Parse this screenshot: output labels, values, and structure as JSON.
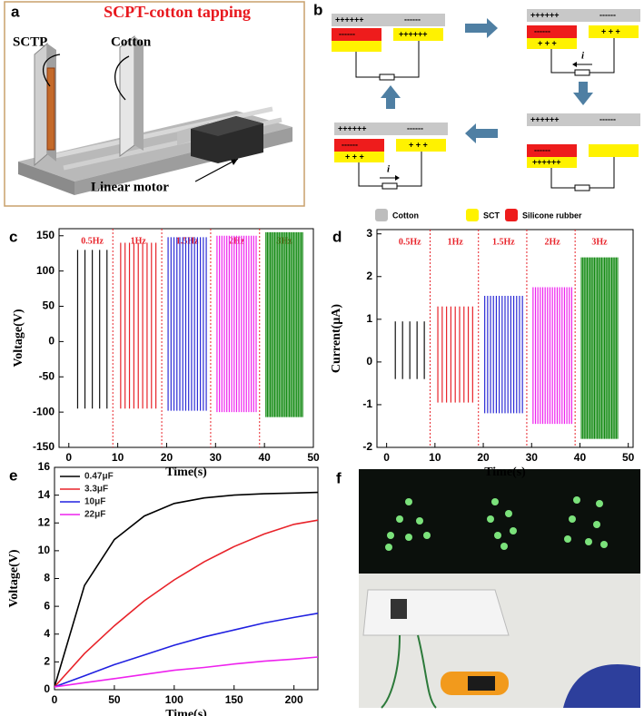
{
  "panels": {
    "a": {
      "label": "a",
      "title": "SCPT-cotton tapping",
      "sctp": "SCTP",
      "cotton": "Cotton",
      "motor": "Linear motor"
    },
    "b": {
      "label": "b",
      "states": [
        [
          "++++++",
          "------",
          "------",
          "++++++"
        ],
        [
          "++++++",
          "------",
          "------",
          "+ + +",
          "+ + +",
          "i"
        ],
        [
          "++++++",
          "------",
          "------",
          "++++++"
        ],
        [
          "++++++",
          "------",
          "------",
          "+ + +",
          "+ + +",
          "i"
        ]
      ],
      "legend": [
        "Cotton",
        "SCT",
        "Silicone rubber"
      ]
    },
    "f": {
      "label": "f"
    }
  },
  "chart_data": [
    {
      "type": "pulse",
      "panel_label": "c",
      "xlabel": "Time(s)",
      "ylabel": "Voltage(V)",
      "xlim": [
        -2,
        50
      ],
      "ylim": [
        -150,
        160
      ],
      "xticks": [
        0,
        10,
        20,
        30,
        40,
        50
      ],
      "yticks": [
        -150,
        -100,
        -50,
        0,
        50,
        100,
        150
      ],
      "dividers": [
        9,
        19,
        29,
        39
      ],
      "series": [
        {
          "name": "0.5Hz",
          "color": "#111111",
          "max": 130,
          "min": -95,
          "peaks": [
            1.8,
            3.3,
            4.8,
            6.3,
            7.8
          ]
        },
        {
          "name": "1Hz",
          "color": "#e8232a",
          "max": 140,
          "min": -95,
          "peaks": [
            10.6,
            11.5,
            12.4,
            13.3,
            14.2,
            15.1,
            16.0,
            16.9,
            17.8
          ]
        },
        {
          "name": "1.5Hz",
          "color": "#2b2bd6",
          "max": 148,
          "min": -98,
          "peaks": [
            20.3,
            20.9,
            21.5,
            22.1,
            22.7,
            23.3,
            23.9,
            24.5,
            25.1,
            25.7,
            26.3,
            26.9,
            27.5,
            28.1
          ]
        },
        {
          "name": "2Hz",
          "color": "#ee22ee",
          "max": 150,
          "min": -100,
          "peaks": [
            30.3,
            30.8,
            31.3,
            31.8,
            32.3,
            32.8,
            33.3,
            33.8,
            34.3,
            34.8,
            35.3,
            35.8,
            36.3,
            36.8,
            37.3,
            37.8,
            38.3
          ]
        },
        {
          "name": "3Hz",
          "color": "#128a12",
          "max": 155,
          "min": -107,
          "peaks": [
            40.3,
            40.6,
            40.9,
            41.2,
            41.5,
            41.8,
            42.1,
            42.4,
            42.7,
            43,
            43.3,
            43.6,
            43.9,
            44.2,
            44.5,
            44.8,
            45.1,
            45.4,
            45.7,
            46,
            46.3,
            46.6,
            46.9,
            47.2,
            47.5,
            47.8
          ]
        }
      ]
    },
    {
      "type": "pulse",
      "panel_label": "d",
      "xlabel": "Time(s)",
      "ylabel": "Current(μA)",
      "xlim": [
        -2,
        51
      ],
      "ylim": [
        -2,
        3.1
      ],
      "xticks": [
        0,
        10,
        20,
        30,
        40,
        50
      ],
      "yticks": [
        -2,
        -1,
        0,
        1,
        2,
        3
      ],
      "dividers": [
        9,
        19,
        29,
        39
      ],
      "series": [
        {
          "name": "0.5Hz",
          "color": "#111111",
          "max": 0.95,
          "min": -0.4,
          "peaks": [
            1.8,
            3.3,
            4.8,
            6.3,
            7.8
          ]
        },
        {
          "name": "1Hz",
          "color": "#e8232a",
          "max": 1.3,
          "min": -0.95,
          "peaks": [
            10.6,
            11.5,
            12.4,
            13.3,
            14.2,
            15.1,
            16.0,
            16.9,
            17.8
          ]
        },
        {
          "name": "1.5Hz",
          "color": "#2b2bd6",
          "max": 1.55,
          "min": -1.2,
          "peaks": [
            20.3,
            20.9,
            21.5,
            22.1,
            22.7,
            23.3,
            23.9,
            24.5,
            25.1,
            25.7,
            26.3,
            26.9,
            27.5,
            28.1
          ]
        },
        {
          "name": "2Hz",
          "color": "#ee22ee",
          "max": 1.75,
          "min": -1.45,
          "peaks": [
            30.3,
            30.8,
            31.3,
            31.8,
            32.3,
            32.8,
            33.3,
            33.8,
            34.3,
            34.8,
            35.3,
            35.8,
            36.3,
            36.8,
            37.3,
            37.8,
            38.3
          ]
        },
        {
          "name": "3Hz",
          "color": "#128a12",
          "max": 2.45,
          "min": -1.8,
          "peaks": [
            40.3,
            40.6,
            40.9,
            41.2,
            41.5,
            41.8,
            42.1,
            42.4,
            42.7,
            43,
            43.3,
            43.6,
            43.9,
            44.2,
            44.5,
            44.8,
            45.1,
            45.4,
            45.7,
            46,
            46.3,
            46.6,
            46.9,
            47.2,
            47.5,
            47.8
          ]
        }
      ]
    },
    {
      "type": "line",
      "panel_label": "e",
      "xlabel": "Time(s)",
      "ylabel": "Voltage(V)",
      "xlim": [
        0,
        220
      ],
      "ylim": [
        0,
        16
      ],
      "xticks": [
        0,
        50,
        100,
        150,
        200
      ],
      "yticks": [
        0,
        2,
        4,
        6,
        8,
        10,
        12,
        14,
        16
      ],
      "legend": "upper left",
      "x": [
        0,
        25,
        50,
        75,
        100,
        125,
        150,
        175,
        200,
        220
      ],
      "series": [
        {
          "name": "0.47μF",
          "color": "#000000",
          "values": [
            0.2,
            7.5,
            10.8,
            12.5,
            13.4,
            13.8,
            14.0,
            14.1,
            14.15,
            14.2
          ]
        },
        {
          "name": "3.3μF",
          "color": "#e8232a",
          "values": [
            0.2,
            2.6,
            4.6,
            6.4,
            7.9,
            9.2,
            10.3,
            11.2,
            11.9,
            12.2
          ]
        },
        {
          "name": "10μF",
          "color": "#2020e0",
          "values": [
            0.2,
            1.0,
            1.8,
            2.5,
            3.2,
            3.8,
            4.3,
            4.8,
            5.2,
            5.5
          ]
        },
        {
          "name": "22μF",
          "color": "#ee22ee",
          "values": [
            0.2,
            0.5,
            0.8,
            1.1,
            1.4,
            1.6,
            1.85,
            2.05,
            2.2,
            2.35
          ]
        }
      ]
    }
  ]
}
